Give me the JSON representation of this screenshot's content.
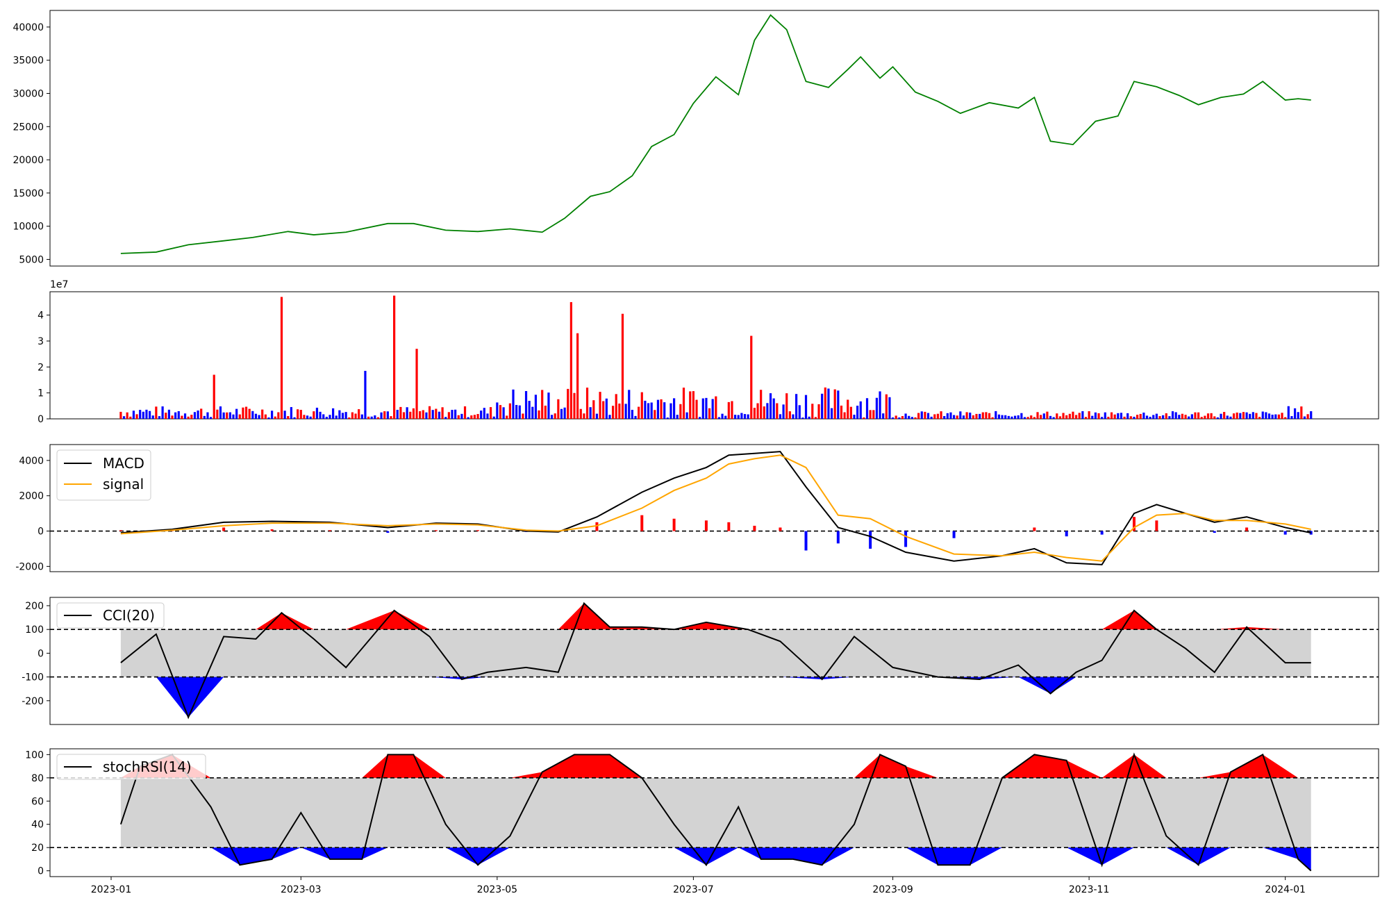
{
  "chart_data": [
    {
      "panel": "price",
      "type": "line",
      "ylim": [
        4000,
        42500
      ],
      "yticks": [
        5000,
        10000,
        15000,
        20000,
        25000,
        30000,
        35000,
        40000
      ],
      "color": "#008000",
      "x": [
        "2023-01-04",
        "2023-01-15",
        "2023-01-25",
        "2023-02-05",
        "2023-02-14",
        "2023-02-25",
        "2023-03-05",
        "2023-03-15",
        "2023-03-28",
        "2023-04-05",
        "2023-04-15",
        "2023-04-25",
        "2023-05-05",
        "2023-05-15",
        "2023-05-22",
        "2023-05-30",
        "2023-06-05",
        "2023-06-12",
        "2023-06-18",
        "2023-06-25",
        "2023-07-01",
        "2023-07-08",
        "2023-07-15",
        "2023-07-20",
        "2023-07-25",
        "2023-07-30",
        "2023-08-05",
        "2023-08-12",
        "2023-08-18",
        "2023-08-22",
        "2023-08-28",
        "2023-09-01",
        "2023-09-08",
        "2023-09-15",
        "2023-09-22",
        "2023-10-01",
        "2023-10-10",
        "2023-10-15",
        "2023-10-20",
        "2023-10-27",
        "2023-11-03",
        "2023-11-10",
        "2023-11-15",
        "2023-11-22",
        "2023-11-29",
        "2023-12-05",
        "2023-12-12",
        "2023-12-19",
        "2023-12-25",
        "2024-01-01",
        "2024-01-05",
        "2024-01-09"
      ],
      "values": [
        5900,
        6100,
        7200,
        7800,
        8300,
        9200,
        8700,
        9100,
        10400,
        10400,
        9400,
        9200,
        9600,
        9100,
        11200,
        14500,
        15200,
        17600,
        22000,
        23800,
        28500,
        32500,
        29800,
        38000,
        41800,
        39600,
        31800,
        30900,
        33600,
        35500,
        32300,
        34000,
        30200,
        28800,
        27000,
        28600,
        27800,
        29400,
        22800,
        22300,
        25800,
        26600,
        31800,
        31000,
        29700,
        28300,
        29400,
        29900,
        31800,
        29000,
        29200,
        29000
      ],
      "xlim": [
        "2022-12-13",
        "2024-01-30"
      ]
    },
    {
      "panel": "volume",
      "type": "bar",
      "offset_label": "1e7",
      "ylim": [
        0,
        4.9
      ],
      "yticks": [
        0,
        1,
        2,
        3,
        4
      ],
      "unit": "1e7",
      "colors": {
        "up": "#ff0000",
        "down": "#0000ff",
        "flat": "#000000"
      },
      "peaks": [
        {
          "date": "2023-02-23",
          "value": 4.7,
          "color": "up"
        },
        {
          "date": "2023-03-30",
          "value": 4.75,
          "color": "up"
        },
        {
          "date": "2023-04-06",
          "value": 2.7,
          "color": "up"
        },
        {
          "date": "2023-05-24",
          "value": 4.5,
          "color": "up"
        },
        {
          "date": "2023-05-26",
          "value": 3.3,
          "color": "up"
        },
        {
          "date": "2023-06-09",
          "value": 4.05,
          "color": "up"
        },
        {
          "date": "2023-07-19",
          "value": 3.2,
          "color": "up"
        },
        {
          "date": "2023-02-02",
          "value": 1.7,
          "color": "up"
        },
        {
          "date": "2023-03-21",
          "value": 1.85,
          "color": "down"
        }
      ]
    },
    {
      "panel": "macd",
      "type": "line",
      "ylim": [
        -2300,
        4900
      ],
      "yticks": [
        -2000,
        0,
        2000,
        4000
      ],
      "series": [
        {
          "name": "MACD",
          "color": "#000000",
          "x": [
            "2023-01-04",
            "2023-01-20",
            "2023-02-05",
            "2023-02-20",
            "2023-03-10",
            "2023-03-28",
            "2023-04-12",
            "2023-04-25",
            "2023-05-10",
            "2023-05-20",
            "2023-06-01",
            "2023-06-15",
            "2023-06-25",
            "2023-07-05",
            "2023-07-12",
            "2023-07-20",
            "2023-07-28",
            "2023-08-05",
            "2023-08-15",
            "2023-08-25",
            "2023-09-05",
            "2023-09-20",
            "2023-10-05",
            "2023-10-15",
            "2023-10-25",
            "2023-11-05",
            "2023-11-15",
            "2023-11-22",
            "2023-12-01",
            "2023-12-10",
            "2023-12-20",
            "2024-01-01",
            "2024-01-09"
          ],
          "values": [
            -100,
            100,
            500,
            550,
            500,
            200,
            450,
            400,
            0,
            -50,
            800,
            2200,
            3000,
            3600,
            4300,
            4400,
            4500,
            2500,
            200,
            -300,
            -1200,
            -1700,
            -1400,
            -1000,
            -1800,
            -1900,
            1000,
            1500,
            1000,
            500,
            800,
            200,
            -100
          ]
        },
        {
          "name": "signal",
          "color": "#ffa500",
          "x": [
            "2023-01-04",
            "2023-01-20",
            "2023-02-05",
            "2023-02-20",
            "2023-03-10",
            "2023-03-28",
            "2023-04-12",
            "2023-04-25",
            "2023-05-10",
            "2023-05-20",
            "2023-06-01",
            "2023-06-15",
            "2023-06-25",
            "2023-07-05",
            "2023-07-12",
            "2023-07-20",
            "2023-07-28",
            "2023-08-05",
            "2023-08-15",
            "2023-08-25",
            "2023-09-05",
            "2023-09-20",
            "2023-10-05",
            "2023-10-15",
            "2023-10-25",
            "2023-11-05",
            "2023-11-15",
            "2023-11-22",
            "2023-12-01",
            "2023-12-10",
            "2023-12-20",
            "2024-01-01",
            "2024-01-09"
          ],
          "values": [
            -150,
            50,
            300,
            450,
            450,
            300,
            400,
            350,
            50,
            0,
            300,
            1300,
            2300,
            3000,
            3800,
            4100,
            4300,
            3600,
            900,
            700,
            -300,
            -1300,
            -1400,
            -1200,
            -1500,
            -1700,
            200,
            900,
            1000,
            600,
            600,
            400,
            100
          ]
        }
      ]
    },
    {
      "panel": "cci",
      "type": "line",
      "ylim": [
        -300,
        235
      ],
      "yticks": [
        -200,
        -100,
        0,
        100,
        200
      ],
      "bands": [
        -100,
        100
      ],
      "series": [
        {
          "name": "CCI(20)",
          "color": "#000000",
          "x": [
            "2023-01-04",
            "2023-01-15",
            "2023-01-25",
            "2023-02-05",
            "2023-02-15",
            "2023-02-23",
            "2023-03-05",
            "2023-03-15",
            "2023-03-30",
            "2023-04-10",
            "2023-04-20",
            "2023-04-28",
            "2023-05-10",
            "2023-05-20",
            "2023-05-28",
            "2023-06-05",
            "2023-06-15",
            "2023-06-25",
            "2023-07-05",
            "2023-07-18",
            "2023-07-28",
            "2023-08-10",
            "2023-08-20",
            "2023-09-01",
            "2023-09-15",
            "2023-09-28",
            "2023-10-10",
            "2023-10-20",
            "2023-10-28",
            "2023-11-05",
            "2023-11-15",
            "2023-11-22",
            "2023-12-01",
            "2023-12-10",
            "2023-12-20",
            "2024-01-01",
            "2024-01-09"
          ],
          "values": [
            -40,
            80,
            -270,
            70,
            60,
            170,
            60,
            -60,
            180,
            70,
            -110,
            -80,
            -60,
            -80,
            210,
            110,
            110,
            100,
            130,
            100,
            50,
            -110,
            70,
            -60,
            -100,
            -110,
            -50,
            -170,
            -80,
            -30,
            180,
            100,
            20,
            -80,
            110,
            -40,
            -40
          ]
        }
      ]
    },
    {
      "panel": "stochrsi",
      "type": "line",
      "ylim": [
        -5,
        105
      ],
      "yticks": [
        0,
        20,
        40,
        60,
        80,
        100
      ],
      "bands": [
        20,
        80
      ],
      "series": [
        {
          "name": "stochRSI(14)",
          "color": "#000000",
          "x": [
            "2023-01-04",
            "2023-01-10",
            "2023-01-20",
            "2023-02-01",
            "2023-02-10",
            "2023-02-20",
            "2023-03-01",
            "2023-03-10",
            "2023-03-20",
            "2023-03-28",
            "2023-04-05",
            "2023-04-15",
            "2023-04-25",
            "2023-05-05",
            "2023-05-15",
            "2023-05-25",
            "2023-06-05",
            "2023-06-15",
            "2023-06-25",
            "2023-07-05",
            "2023-07-15",
            "2023-07-22",
            "2023-08-01",
            "2023-08-10",
            "2023-08-20",
            "2023-08-28",
            "2023-09-05",
            "2023-09-15",
            "2023-09-25",
            "2023-10-05",
            "2023-10-15",
            "2023-10-25",
            "2023-11-05",
            "2023-11-15",
            "2023-11-25",
            "2023-12-05",
            "2023-12-15",
            "2023-12-25",
            "2024-01-05",
            "2024-01-09"
          ],
          "values": [
            40,
            90,
            100,
            55,
            5,
            10,
            50,
            10,
            10,
            100,
            100,
            40,
            5,
            30,
            85,
            100,
            100,
            80,
            40,
            5,
            55,
            10,
            10,
            5,
            40,
            100,
            90,
            5,
            5,
            80,
            100,
            95,
            5,
            100,
            30,
            5,
            85,
            100,
            10,
            0
          ]
        }
      ]
    }
  ],
  "xticks": [
    "2023-01",
    "2023-03",
    "2023-05",
    "2023-07",
    "2023-09",
    "2023-11",
    "2024-01"
  ]
}
